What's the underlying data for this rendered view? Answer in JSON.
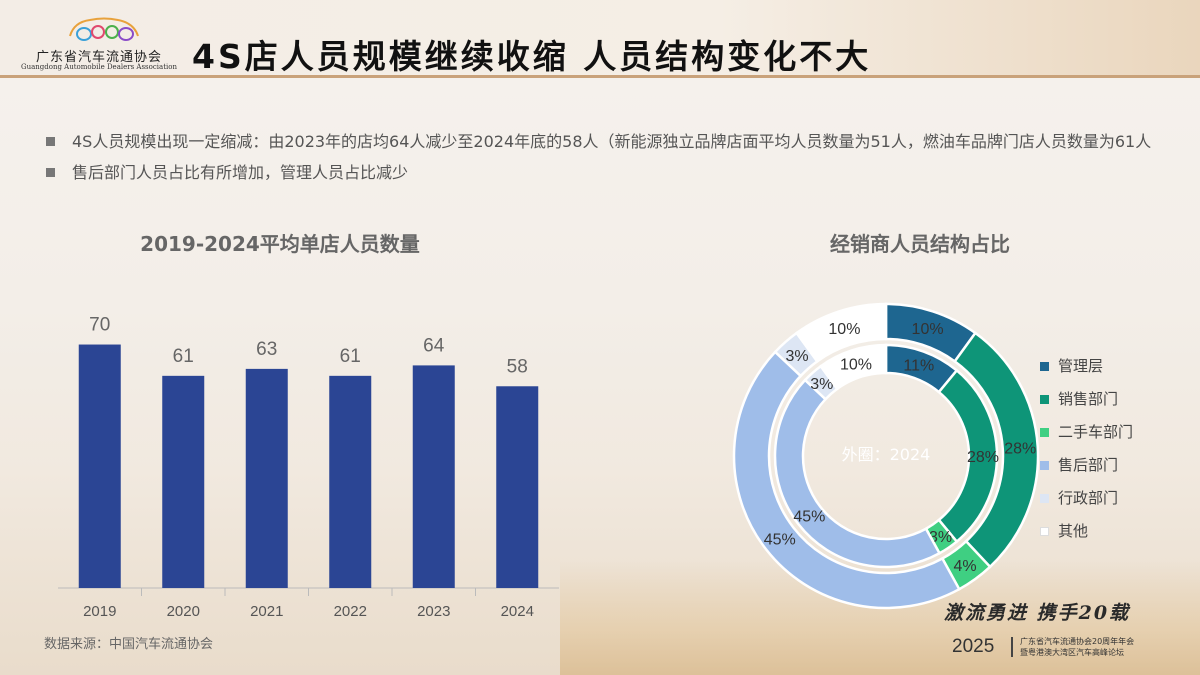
{
  "header": {
    "logo_cn": "广东省汽车流通协会",
    "logo_en": "Guangdong Automobile Dealers Association",
    "title": "4S店人员规模继续收缩 人员结构变化不大"
  },
  "bullets": [
    "4S人员规模出现一定缩减：由2023年的店均64人减少至2024年底的58人（新能源独立品牌店面平均人员数量为51人，燃油车品牌门店人员数量为61人",
    "售后部门人员占比有所增加，管理人员占比减少"
  ],
  "source": "数据来源：中国汽车流通协会",
  "footer": {
    "slogan": "激流勇进  携手20载",
    "year": "2025",
    "sub1": "广东省汽车流通协会20周年年会",
    "sub2": "暨粤港澳大湾区汽车高峰论坛"
  },
  "chart_data": [
    {
      "type": "bar",
      "title": "2019-2024平均单店人员数量",
      "categories": [
        "2019",
        "2020",
        "2021",
        "2022",
        "2023",
        "2024"
      ],
      "values": [
        70,
        61,
        63,
        61,
        64,
        58
      ],
      "color": "#2b4594",
      "ylim": [
        0,
        80
      ]
    },
    {
      "type": "pie",
      "title": "经销商人员结构占比",
      "center_label": "外圈：2024",
      "categories": [
        "管理层",
        "销售部门",
        "二手车部门",
        "售后部门",
        "行政部门",
        "其他"
      ],
      "colors": [
        "#1e6690",
        "#0e9578",
        "#3fcf82",
        "#9fbde9",
        "#dde6f4",
        "#ffffff"
      ],
      "series": [
        {
          "ring": "outer",
          "values": [
            10,
            28,
            4,
            45,
            3,
            10
          ],
          "labels": [
            "10%",
            "28%",
            "4%",
            "45%",
            "3%",
            "10%"
          ]
        },
        {
          "ring": "inner",
          "values": [
            11,
            28,
            3,
            45,
            3,
            10
          ],
          "labels": [
            "11%",
            "28%",
            "3%",
            "45%",
            "3%",
            "10%"
          ]
        }
      ]
    }
  ]
}
